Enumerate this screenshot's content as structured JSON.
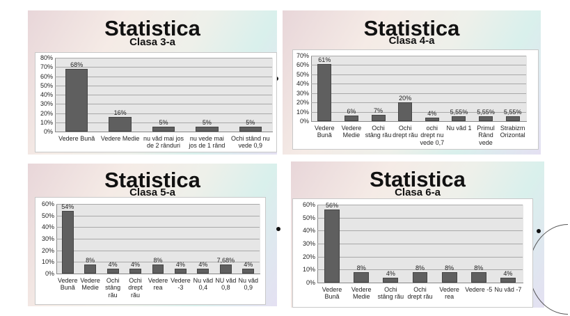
{
  "chart_data": [
    {
      "type": "bar",
      "title": "Statistica",
      "subtitle": "Clasa 3-a",
      "ylim": [
        0,
        80
      ],
      "yticks": [
        0,
        10,
        20,
        30,
        40,
        50,
        60,
        70,
        80
      ],
      "categories": [
        "Vedere Bună",
        "Vedere Medie",
        "nu văd mai jos\nde 2 rânduri",
        "nu vede mai\njos de 1 rând",
        "Ochi stând nu\nvede 0,9"
      ],
      "values": [
        68,
        16,
        5,
        5,
        5
      ],
      "labels": [
        "68%",
        "16%",
        "5%",
        "5%",
        "5%"
      ],
      "bar_color": "#5f5f5f",
      "grid": true
    },
    {
      "type": "bar",
      "title": "Statistica",
      "subtitle": "Clasa 4-a",
      "ylim": [
        0,
        70
      ],
      "yticks": [
        0,
        10,
        20,
        30,
        40,
        50,
        60,
        70
      ],
      "categories": [
        "Vedere\nBună",
        "Vedere\nMedie",
        "Ochi\nstâng rău",
        "Ochi\ndrept rău",
        "ochi\ndrept nu\nvede 0,7",
        "Nu văd 1",
        "Primul\nRând\nvede",
        "Strabizm\nOrizontal"
      ],
      "values": [
        61,
        6,
        7,
        20,
        4,
        5.55,
        5.55,
        5.55
      ],
      "labels": [
        "61%",
        "6%",
        "7%",
        "20%",
        "4%",
        "5,55%",
        "5,55%",
        "5,55%"
      ],
      "bar_color": "#5f5f5f",
      "grid": true
    },
    {
      "type": "bar",
      "title": "Statistica",
      "subtitle": "Clasa 5-a",
      "ylim": [
        0,
        60
      ],
      "yticks": [
        0,
        10,
        20,
        30,
        40,
        50,
        60
      ],
      "categories": [
        "Vedere\nBună",
        "Vedere\nMedie",
        "Ochi\nstâng\nrău",
        "Ochi\ndrept\nrău",
        "Vedere\nrea",
        "Vedere\n-3",
        "Nu văd\n0,4",
        "NU văd\n0,8",
        "Nu văd\n0,9"
      ],
      "values": [
        54,
        8,
        4,
        4,
        8,
        4,
        4,
        7.68,
        4
      ],
      "labels": [
        "54%",
        "8%",
        "4%",
        "4%",
        "8%",
        "4%",
        "4%",
        "7,68%",
        "4%"
      ],
      "bar_color": "#5f5f5f",
      "grid": true
    },
    {
      "type": "bar",
      "title": "Statistica",
      "subtitle": "Clasa 6-a",
      "ylim": [
        0,
        60
      ],
      "yticks": [
        0,
        10,
        20,
        30,
        40,
        50,
        60
      ],
      "categories": [
        "Vedere\nBună",
        "Vedere\nMedie",
        "Ochi\nstâng rău",
        "Ochi\ndrept rău",
        "Vedere\nrea",
        "Vedere -5",
        "Nu văd -7"
      ],
      "values": [
        56,
        8,
        4,
        8,
        8,
        8,
        4
      ],
      "labels": [
        "56%",
        "8%",
        "4%",
        "8%",
        "8%",
        "8%",
        "4%"
      ],
      "bar_color": "#5f5f5f",
      "grid": true
    }
  ]
}
